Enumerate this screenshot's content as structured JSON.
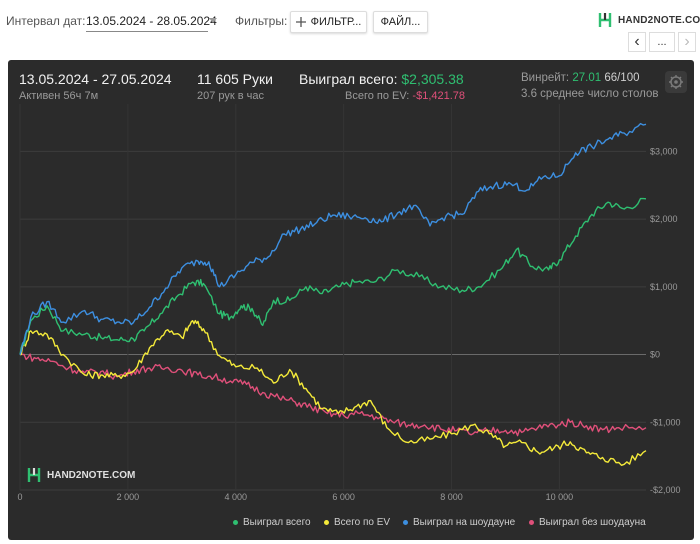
{
  "toolbar": {
    "interval_label": "Интервал дат:",
    "interval_value": "13.05.2024 - 28.05.2024",
    "filters_label": "Фильтры:",
    "filter_button": "ФИЛЬТР...",
    "files_button": "ФАЙЛ...",
    "logo_text": "HAND2NOTE.COM",
    "more_button": "...",
    "prev_glyph": "‹",
    "next_glyph": "›"
  },
  "summary": {
    "period": "13.05.2024 - 27.05.2024",
    "active": "Активен 56ч 7м",
    "hands": "11 605 Руки",
    "hands_per_hour": "207 рук в час",
    "won_total_label": "Выиграл всего:",
    "won_total_value": "$2,305.38",
    "ev_label": "Всего по EV:",
    "ev_value": "-$1,421.78",
    "winrate_label": "Винрейт:",
    "winrate_value": "27.01",
    "winrate_suffix": "66/100",
    "tables": "3.6 среднее число столов"
  },
  "watermark": "HAND2NOTE.COM",
  "colors": {
    "panel": "#2b2b2b",
    "won_total": "#2fbf71",
    "ev": "#f4ea3a",
    "showdown": "#3d8fe0",
    "no_showdown": "#e0507a"
  },
  "chart_data": {
    "type": "line",
    "xlim": [
      0,
      11605
    ],
    "ylim": [
      -2000,
      3700
    ],
    "x_ticks": [
      0,
      2000,
      4000,
      6000,
      8000,
      10000
    ],
    "x_tick_labels": [
      "0",
      "2 000",
      "4 000",
      "6 000",
      "8 000",
      "10 000"
    ],
    "y_ticks": [
      3000,
      2000,
      1000,
      0,
      -1000,
      -2000
    ],
    "y_tick_labels": [
      "$3,000",
      "$2,000",
      "$1,000",
      "$0",
      "-$1,000",
      "-$2,000"
    ],
    "grid": true,
    "legend_position": "bottom-right",
    "series": [
      {
        "name": "Выиграл всего",
        "color": "#2fbf71",
        "points": [
          [
            0,
            0
          ],
          [
            200,
            500
          ],
          [
            500,
            720
          ],
          [
            800,
            350
          ],
          [
            1200,
            300
          ],
          [
            1500,
            250
          ],
          [
            1800,
            220
          ],
          [
            2100,
            230
          ],
          [
            2300,
            350
          ],
          [
            2600,
            600
          ],
          [
            2900,
            850
          ],
          [
            3200,
            1070
          ],
          [
            3400,
            1050
          ],
          [
            3700,
            600
          ],
          [
            3900,
            550
          ],
          [
            4100,
            720
          ],
          [
            4300,
            680
          ],
          [
            4500,
            430
          ],
          [
            4700,
            800
          ],
          [
            5000,
            800
          ],
          [
            5300,
            1000
          ],
          [
            5600,
            900
          ],
          [
            5900,
            1000
          ],
          [
            6200,
            1070
          ],
          [
            6600,
            1080
          ],
          [
            7000,
            1250
          ],
          [
            7400,
            1150
          ],
          [
            7800,
            1000
          ],
          [
            8200,
            950
          ],
          [
            8500,
            1000
          ],
          [
            8900,
            1250
          ],
          [
            9200,
            1550
          ],
          [
            9500,
            1300
          ],
          [
            9800,
            1250
          ],
          [
            10000,
            1400
          ],
          [
            10300,
            1750
          ],
          [
            10600,
            2070
          ],
          [
            10900,
            2250
          ],
          [
            11200,
            2150
          ],
          [
            11605,
            2300
          ]
        ]
      },
      {
        "name": "Всего по EV",
        "color": "#f4ea3a",
        "points": [
          [
            0,
            0
          ],
          [
            200,
            350
          ],
          [
            500,
            300
          ],
          [
            800,
            0
          ],
          [
            1200,
            -300
          ],
          [
            1500,
            -300
          ],
          [
            1800,
            -320
          ],
          [
            2100,
            -250
          ],
          [
            2400,
            100
          ],
          [
            2700,
            350
          ],
          [
            3000,
            250
          ],
          [
            3200,
            500
          ],
          [
            3400,
            380
          ],
          [
            3700,
            -20
          ],
          [
            4000,
            -180
          ],
          [
            4400,
            -200
          ],
          [
            4700,
            -420
          ],
          [
            5000,
            -220
          ],
          [
            5300,
            -500
          ],
          [
            5600,
            -800
          ],
          [
            5900,
            -870
          ],
          [
            6200,
            -780
          ],
          [
            6500,
            -680
          ],
          [
            6800,
            -1080
          ],
          [
            7200,
            -1300
          ],
          [
            7600,
            -1250
          ],
          [
            8000,
            -1170
          ],
          [
            8400,
            -1040
          ],
          [
            8700,
            -1170
          ],
          [
            9000,
            -1350
          ],
          [
            9300,
            -1300
          ],
          [
            9600,
            -1440
          ],
          [
            9900,
            -1380
          ],
          [
            10200,
            -1290
          ],
          [
            10500,
            -1450
          ],
          [
            10800,
            -1520
          ],
          [
            11200,
            -1620
          ],
          [
            11605,
            -1420
          ]
        ]
      },
      {
        "name": "Выиграл на шоудауне",
        "color": "#3d8fe0",
        "points": [
          [
            0,
            0
          ],
          [
            200,
            550
          ],
          [
            500,
            780
          ],
          [
            800,
            480
          ],
          [
            1200,
            650
          ],
          [
            1500,
            520
          ],
          [
            1800,
            480
          ],
          [
            2100,
            470
          ],
          [
            2400,
            700
          ],
          [
            2700,
            980
          ],
          [
            3000,
            1280
          ],
          [
            3300,
            1380
          ],
          [
            3500,
            1370
          ],
          [
            3700,
            1000
          ],
          [
            4000,
            1180
          ],
          [
            4300,
            1360
          ],
          [
            4600,
            1440
          ],
          [
            4900,
            1780
          ],
          [
            5200,
            1850
          ],
          [
            5500,
            1950
          ],
          [
            5800,
            2060
          ],
          [
            6100,
            2040
          ],
          [
            6400,
            2020
          ],
          [
            6700,
            1960
          ],
          [
            7000,
            2090
          ],
          [
            7300,
            2200
          ],
          [
            7600,
            1900
          ],
          [
            7900,
            2050
          ],
          [
            8200,
            2070
          ],
          [
            8500,
            2410
          ],
          [
            8800,
            2500
          ],
          [
            9100,
            2520
          ],
          [
            9400,
            2430
          ],
          [
            9700,
            2620
          ],
          [
            10000,
            2640
          ],
          [
            10300,
            2980
          ],
          [
            10600,
            3070
          ],
          [
            10900,
            3180
          ],
          [
            11200,
            3270
          ],
          [
            11605,
            3400
          ]
        ]
      },
      {
        "name": "Выиграл без шоудауна",
        "color": "#e0507a",
        "points": [
          [
            0,
            0
          ],
          [
            300,
            -60
          ],
          [
            600,
            -100
          ],
          [
            900,
            -200
          ],
          [
            1200,
            -270
          ],
          [
            1500,
            -250
          ],
          [
            1800,
            -330
          ],
          [
            2100,
            -240
          ],
          [
            2400,
            -200
          ],
          [
            2700,
            -200
          ],
          [
            3000,
            -230
          ],
          [
            3300,
            -300
          ],
          [
            3600,
            -330
          ],
          [
            3900,
            -390
          ],
          [
            4200,
            -440
          ],
          [
            4500,
            -560
          ],
          [
            4800,
            -640
          ],
          [
            5100,
            -700
          ],
          [
            5400,
            -780
          ],
          [
            5700,
            -870
          ],
          [
            6000,
            -900
          ],
          [
            6300,
            -870
          ],
          [
            6600,
            -920
          ],
          [
            6900,
            -990
          ],
          [
            7200,
            -1040
          ],
          [
            7500,
            -1040
          ],
          [
            7800,
            -1100
          ],
          [
            8100,
            -1120
          ],
          [
            8400,
            -1170
          ],
          [
            8700,
            -1120
          ],
          [
            9000,
            -1120
          ],
          [
            9300,
            -1150
          ],
          [
            9600,
            -1080
          ],
          [
            9900,
            -1040
          ],
          [
            10200,
            -1000
          ],
          [
            10500,
            -1050
          ],
          [
            10800,
            -1110
          ],
          [
            11100,
            -1080
          ],
          [
            11605,
            -1080
          ]
        ]
      }
    ]
  }
}
